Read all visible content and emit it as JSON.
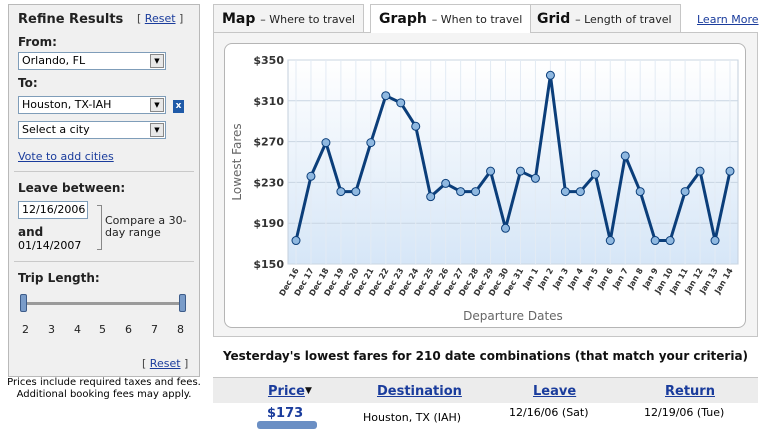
{
  "sidebar": {
    "title": "Refine Results",
    "reset_label": "Reset",
    "from_label": "From:",
    "from_value": "Orlando, FL",
    "to_label": "To:",
    "to_value": "Houston, TX-IAH",
    "to_clear": "x",
    "city_placeholder": "Select a city",
    "vote_link": "Vote to add cities",
    "leave_label": "Leave between:",
    "date_start": "12/16/2006",
    "and_label": "and",
    "date_end": "01/14/2007",
    "compare_text": "Compare a 30-day range",
    "trip_label": "Trip Length:",
    "trip_ticks": [
      "2",
      "3",
      "4",
      "5",
      "6",
      "7",
      "8"
    ],
    "trip_range": [
      2,
      8
    ],
    "reset_bottom": "Reset"
  },
  "disclaimer": "Prices include required taxes and fees. Additional booking fees may apply.",
  "tabs": [
    {
      "title": "Map",
      "subtitle": "– Where to travel",
      "active": false
    },
    {
      "title": "Graph",
      "subtitle": "– When to travel",
      "active": true
    },
    {
      "title": "Grid",
      "subtitle": "– Length of travel",
      "active": false
    }
  ],
  "learn_more": "Learn More",
  "summary": "Yesterday's lowest fares for 210 date combinations (that match your criteria)",
  "results": {
    "headers": {
      "price": "Price",
      "destination": "Destination",
      "leave": "Leave",
      "return": "Return"
    },
    "sort_arrow": "▼",
    "row": {
      "price": "$173",
      "destination": "Houston, TX (IAH)",
      "leave": "12/16/06 (Sat)",
      "return": "12/19/06 (Tue)"
    }
  },
  "chart_data": {
    "type": "line",
    "xlabel": "Departure Dates",
    "ylabel": "Lowest Fares",
    "ylim": [
      150,
      350
    ],
    "yticks": [
      "$150",
      "$190",
      "$230",
      "$270",
      "$310",
      "$350"
    ],
    "grid": true,
    "line_color": "#0b3e7a",
    "marker_color": "#8fb8e0",
    "categories": [
      "Dec 16",
      "Dec 17",
      "Dec 18",
      "Dec 19",
      "Dec 20",
      "Dec 21",
      "Dec 22",
      "Dec 23",
      "Dec 24",
      "Dec 25",
      "Dec 26",
      "Dec 27",
      "Dec 28",
      "Dec 29",
      "Dec 30",
      "Dec 31",
      "Jan 1",
      "Jan 2",
      "Jan 3",
      "Jan 4",
      "Jan 5",
      "Jan 6",
      "Jan 7",
      "Jan 8",
      "Jan 9",
      "Jan 10",
      "Jan 11",
      "Jan 12",
      "Jan 13",
      "Jan 14"
    ],
    "values": [
      173,
      236,
      269,
      221,
      221,
      269,
      315,
      308,
      285,
      216,
      229,
      221,
      221,
      241,
      185,
      241,
      234,
      335,
      221,
      221,
      238,
      173,
      256,
      221,
      173,
      173,
      221,
      241,
      173,
      241
    ]
  }
}
